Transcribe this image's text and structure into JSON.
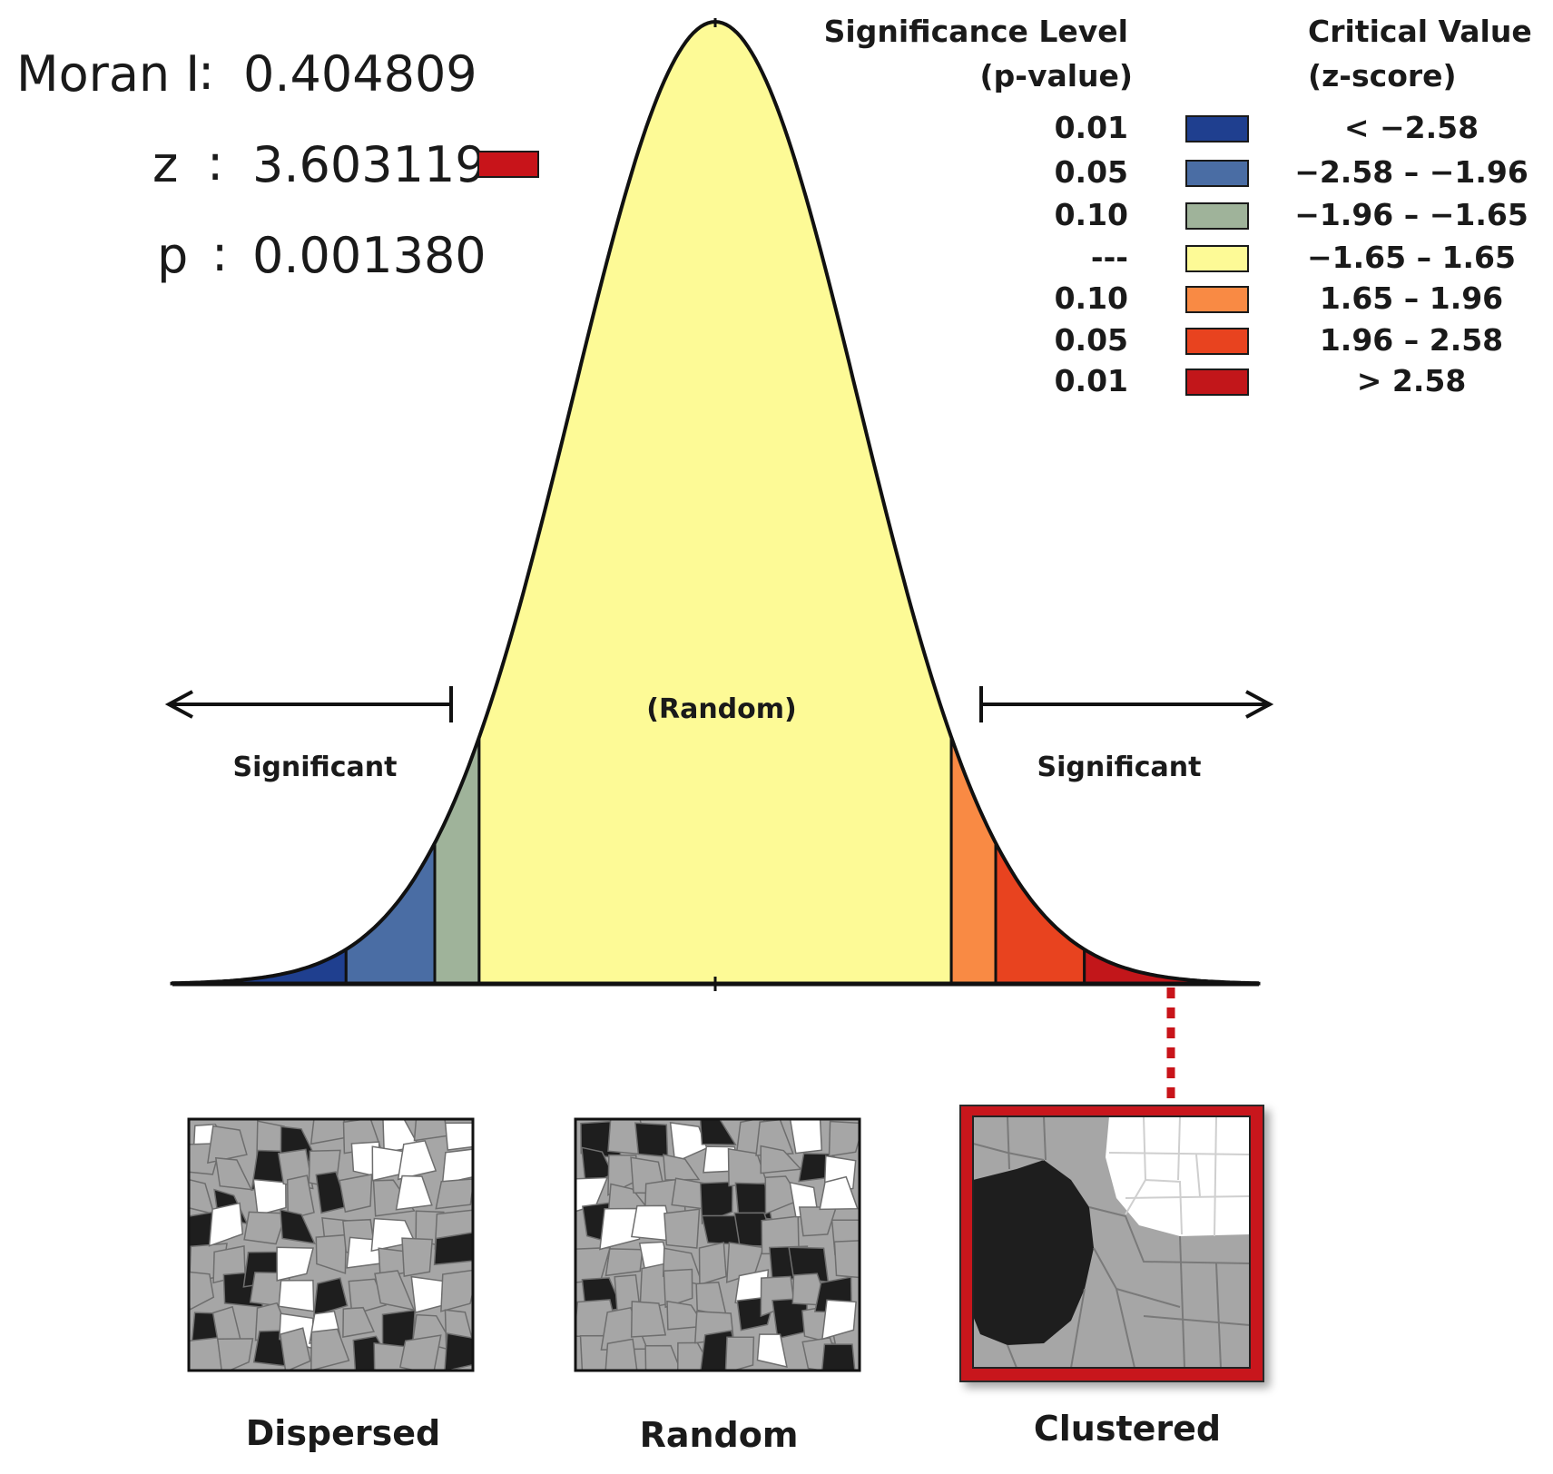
{
  "stats": {
    "moran_label": "Moran I",
    "moran_value": "0.404809",
    "z_label": "z",
    "z_value": "3.603119",
    "p_label": "p",
    "p_value": "0.001380",
    "separator": ":",
    "z_marker_color": "#c8141a"
  },
  "legend": {
    "sig_header_1": "Significance Level",
    "sig_header_2": "(p-value)",
    "crit_header_1": "Critical Value",
    "crit_header_2": "(z-score)",
    "rows": [
      {
        "p": "0.01",
        "z": "< −2.58",
        "color": "#1f3f8f"
      },
      {
        "p": "0.05",
        "z": "−2.58 – −1.96",
        "color": "#4a6da4"
      },
      {
        "p": "0.10",
        "z": "−1.96 – −1.65",
        "color": "#9fb39a"
      },
      {
        "p": "---",
        "z": "−1.65 – 1.65",
        "color": "#fdfa96"
      },
      {
        "p": "0.10",
        "z": "1.65 – 1.96",
        "color": "#f98a44"
      },
      {
        "p": "0.05",
        "z": "1.96 – 2.58",
        "color": "#e8431f"
      },
      {
        "p": "0.01",
        "z": "> 2.58",
        "color": "#c2161a"
      }
    ]
  },
  "curve": {
    "center_label": "(Random)",
    "left_label": "Significant",
    "right_label": "Significant",
    "z_cutoffs": [
      -2.58,
      -1.96,
      -1.65,
      1.65,
      1.96,
      2.58
    ],
    "observed_z": 3.603119
  },
  "maps": [
    {
      "label": "Dispersed",
      "highlight": false
    },
    {
      "label": "Random",
      "highlight": false
    },
    {
      "label": "Clustered",
      "highlight": true
    }
  ],
  "highlight_color": "#c8141a"
}
